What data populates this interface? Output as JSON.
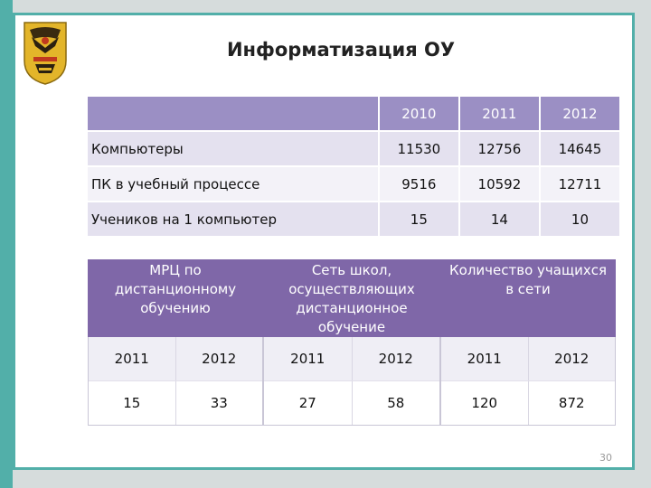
{
  "title": "Информатизация ОУ",
  "top_table": {
    "years": [
      "2010",
      "2011",
      "2012"
    ],
    "rows": [
      {
        "label": "Компьютеры",
        "values": [
          "11530",
          "12756",
          "14645"
        ]
      },
      {
        "label": "ПК в учебный процессе",
        "values": [
          "9516",
          "10592",
          "12711"
        ]
      },
      {
        "label": "Учеников на 1 компьютер",
        "values": [
          "15",
          "14",
          "10"
        ]
      }
    ]
  },
  "bottom_tables": [
    {
      "header": "МРЦ по дистанционному обучению",
      "years": [
        "2011",
        "2012"
      ],
      "values": [
        "15",
        "33"
      ]
    },
    {
      "header": "Сеть школ, осуществляющих дистанционное обучение",
      "years": [
        "2011",
        "2012"
      ],
      "values": [
        "27",
        "58"
      ]
    },
    {
      "header": "Количество учащихся в сети",
      "years": [
        "2011",
        "2012"
      ],
      "values": [
        "120",
        "872"
      ]
    }
  ],
  "page_number": "30",
  "colors": {
    "accent": "#52afa9",
    "header_purple": "#7f67a8",
    "table_purple": "#9b8fc4"
  }
}
